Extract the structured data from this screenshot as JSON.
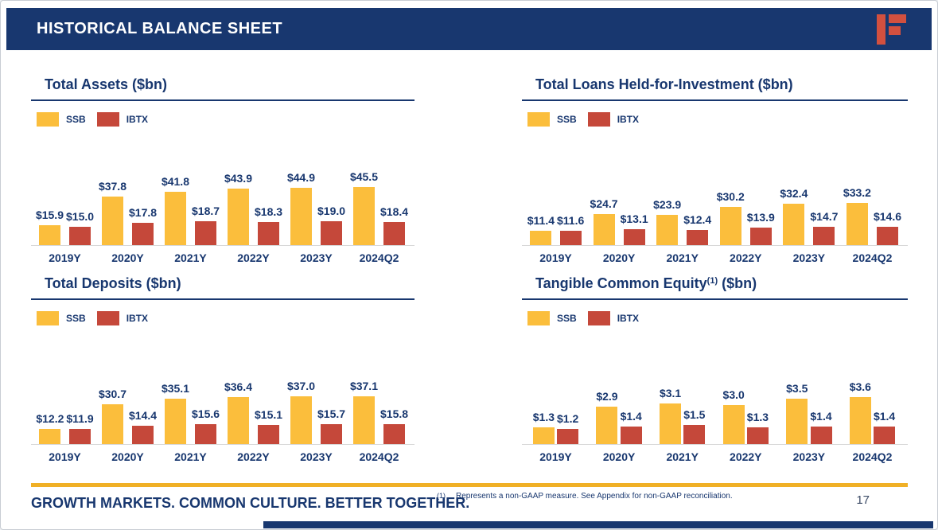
{
  "header": {
    "title": "HISTORICAL BALANCE SHEET"
  },
  "colors": {
    "navy": "#18376F",
    "ssb": "#FBBE3C",
    "ibtx": "#C5483A",
    "gold": "#F0B026",
    "logo_red": "#D2503F"
  },
  "chart_data": [
    {
      "type": "bar",
      "title": "Total Assets ($bn)",
      "title_sup": "",
      "title_suffix": "",
      "categories": [
        "2019Y",
        "2020Y",
        "2021Y",
        "2022Y",
        "2023Y",
        "2024Q2"
      ],
      "series": [
        {
          "name": "SSB",
          "key": "ssb",
          "values": [
            15.9,
            37.8,
            41.8,
            43.9,
            44.9,
            45.5
          ],
          "labels": [
            "$15.9",
            "$37.8",
            "$41.8",
            "$43.9",
            "$44.9",
            "$45.5"
          ]
        },
        {
          "name": "IBTX",
          "key": "ibtx",
          "values": [
            15.0,
            17.8,
            18.7,
            18.3,
            19.0,
            18.4
          ],
          "labels": [
            "$15.0",
            "$17.8",
            "$18.7",
            "$18.3",
            "$19.0",
            "$18.4"
          ]
        }
      ],
      "ylim": [
        0,
        87
      ],
      "grid": false,
      "legend_position": "top-left"
    },
    {
      "type": "bar",
      "title": "Total Loans Held-for-Investment ($bn)",
      "title_sup": "",
      "title_suffix": "",
      "categories": [
        "2019Y",
        "2020Y",
        "2021Y",
        "2022Y",
        "2023Y",
        "2024Q2"
      ],
      "series": [
        {
          "name": "SSB",
          "key": "ssb",
          "values": [
            11.4,
            24.7,
            23.9,
            30.2,
            32.4,
            33.2
          ],
          "labels": [
            "$11.4",
            "$24.7",
            "$23.9",
            "$30.2",
            "$32.4",
            "$33.2"
          ]
        },
        {
          "name": "IBTX",
          "key": "ibtx",
          "values": [
            11.6,
            13.1,
            12.4,
            13.9,
            14.7,
            14.6
          ],
          "labels": [
            "$11.6",
            "$13.1",
            "$12.4",
            "$13.9",
            "$14.7",
            "$14.6"
          ]
        }
      ],
      "ylim": [
        0,
        87
      ],
      "grid": false,
      "legend_position": "top-left"
    },
    {
      "type": "bar",
      "title": "Total Deposits ($bn)",
      "title_sup": "",
      "title_suffix": "",
      "categories": [
        "2019Y",
        "2020Y",
        "2021Y",
        "2022Y",
        "2023Y",
        "2024Q2"
      ],
      "series": [
        {
          "name": "SSB",
          "key": "ssb",
          "values": [
            12.2,
            30.7,
            35.1,
            36.4,
            37.0,
            37.1
          ],
          "labels": [
            "$12.2",
            "$30.7",
            "$35.1",
            "$36.4",
            "$37.0",
            "$37.1"
          ]
        },
        {
          "name": "IBTX",
          "key": "ibtx",
          "values": [
            11.9,
            14.4,
            15.6,
            15.1,
            15.7,
            15.8
          ],
          "labels": [
            "$11.9",
            "$14.4",
            "$15.6",
            "$15.1",
            "$15.7",
            "$15.8"
          ]
        }
      ],
      "ylim": [
        0,
        86
      ],
      "grid": false,
      "legend_position": "top-left"
    },
    {
      "type": "bar",
      "title": "Tangible Common Equity",
      "title_sup": "(1)",
      "title_suffix": " ($bn)",
      "categories": [
        "2019Y",
        "2020Y",
        "2021Y",
        "2022Y",
        "2023Y",
        "2024Q2"
      ],
      "series": [
        {
          "name": "SSB",
          "key": "ssb",
          "values": [
            1.3,
            2.9,
            3.1,
            3.0,
            3.5,
            3.6
          ],
          "labels": [
            "$1.3",
            "$2.9",
            "$3.1",
            "$3.0",
            "$3.5",
            "$3.6"
          ]
        },
        {
          "name": "IBTX",
          "key": "ibtx",
          "values": [
            1.2,
            1.4,
            1.5,
            1.3,
            1.4,
            1.4
          ],
          "labels": [
            "$1.2",
            "$1.4",
            "$1.5",
            "$1.3",
            "$1.4",
            "$1.4"
          ]
        }
      ],
      "ylim": [
        0,
        8.5
      ],
      "grid": false,
      "legend_position": "top-left"
    }
  ],
  "footer": {
    "slogan": "GROWTH MARKETS. COMMON CULTURE. BETTER TOGETHER.",
    "footnote_marker": "(1)",
    "footnote_text": "Represents a non-GAAP measure. See Appendix for non-GAAP reconciliation.",
    "page_number": "17"
  }
}
